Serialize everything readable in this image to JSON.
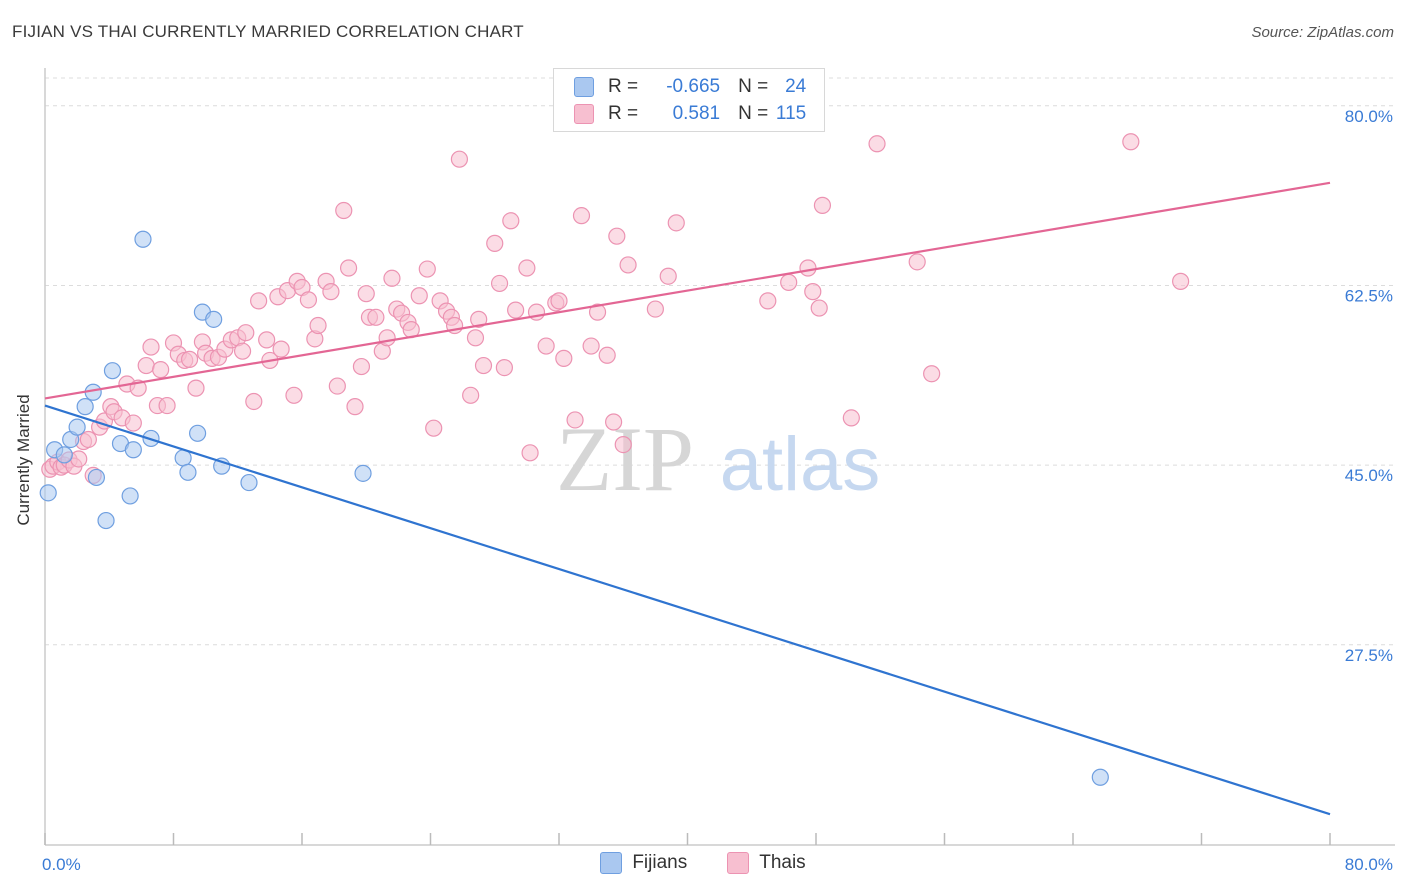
{
  "title": "FIJIAN VS THAI CURRENTLY MARRIED CORRELATION CHART",
  "source": "Source: ZipAtlas.com",
  "watermark": {
    "zip": "ZIP",
    "atlas": "atlas"
  },
  "colors": {
    "fijian_fill": "#aac8f0",
    "fijian_stroke": "#6f9fe0",
    "fijian_line": "#2f74d0",
    "thai_fill": "#f7bfd0",
    "thai_stroke": "#ec93b2",
    "thai_line": "#e36694",
    "axis_text": "#3a7bd5",
    "grid": "#dcdcdc"
  },
  "stats": {
    "fijian": {
      "r_label": "R =",
      "r_value": "-0.665",
      "n_label": "N =",
      "n_value": "24"
    },
    "thai": {
      "r_label": "R =",
      "r_value": "0.581",
      "n_label": "N =",
      "n_value": "115"
    }
  },
  "legend": {
    "fijian": "Fijians",
    "thai": "Thais"
  },
  "chart_data": {
    "type": "scatter",
    "title": "FIJIAN VS THAI CURRENTLY MARRIED CORRELATION CHART",
    "xlabel": "",
    "ylabel": "Currently Married",
    "xlim": [
      0,
      80
    ],
    "ylim": [
      8,
      83
    ],
    "x_tick_labels": [
      "0.0%",
      "80.0%"
    ],
    "y_ticks": [
      27.5,
      45.0,
      62.5,
      80.0
    ],
    "y_tick_labels": [
      "27.5%",
      "45.0%",
      "62.5%",
      "80.0%"
    ],
    "grid": true,
    "series": [
      {
        "name": "Fijians",
        "r": -0.665,
        "n": 24,
        "trend": {
          "x": [
            0,
            80
          ],
          "y": [
            50.8,
            11.0
          ]
        },
        "points": [
          [
            0.2,
            42.3
          ],
          [
            0.6,
            46.5
          ],
          [
            1.2,
            46.0
          ],
          [
            1.6,
            47.5
          ],
          [
            2.0,
            48.7
          ],
          [
            2.5,
            50.7
          ],
          [
            3.0,
            52.1
          ],
          [
            3.2,
            43.8
          ],
          [
            3.8,
            39.6
          ],
          [
            4.2,
            54.2
          ],
          [
            4.7,
            47.1
          ],
          [
            5.3,
            42.0
          ],
          [
            5.5,
            46.5
          ],
          [
            6.1,
            67.0
          ],
          [
            6.6,
            47.6
          ],
          [
            8.6,
            45.7
          ],
          [
            8.9,
            44.3
          ],
          [
            9.5,
            48.1
          ],
          [
            9.8,
            59.9
          ],
          [
            10.5,
            59.2
          ],
          [
            11.0,
            44.9
          ],
          [
            12.7,
            43.3
          ],
          [
            19.8,
            44.2
          ],
          [
            65.7,
            14.6
          ]
        ]
      },
      {
        "name": "Thais",
        "r": 0.581,
        "n": 115,
        "trend": {
          "x": [
            0,
            80
          ],
          "y": [
            51.5,
            72.5
          ]
        },
        "points": [
          [
            0.3,
            44.6
          ],
          [
            0.5,
            44.9
          ],
          [
            0.8,
            45.3
          ],
          [
            1.0,
            44.8
          ],
          [
            1.2,
            45.0
          ],
          [
            1.5,
            45.5
          ],
          [
            1.8,
            44.9
          ],
          [
            2.1,
            45.6
          ],
          [
            2.4,
            47.3
          ],
          [
            2.7,
            47.5
          ],
          [
            3.0,
            44.0
          ],
          [
            3.4,
            48.7
          ],
          [
            3.7,
            49.3
          ],
          [
            4.1,
            50.7
          ],
          [
            4.3,
            50.2
          ],
          [
            4.8,
            49.6
          ],
          [
            5.1,
            52.9
          ],
          [
            5.5,
            49.1
          ],
          [
            5.8,
            52.5
          ],
          [
            6.3,
            54.7
          ],
          [
            6.6,
            56.5
          ],
          [
            7.0,
            50.8
          ],
          [
            7.2,
            54.3
          ],
          [
            7.6,
            50.8
          ],
          [
            8.0,
            56.9
          ],
          [
            8.3,
            55.8
          ],
          [
            8.7,
            55.2
          ],
          [
            9.0,
            55.3
          ],
          [
            9.4,
            52.5
          ],
          [
            9.8,
            57.0
          ],
          [
            10.0,
            55.9
          ],
          [
            10.4,
            55.4
          ],
          [
            10.8,
            55.5
          ],
          [
            11.2,
            56.3
          ],
          [
            11.6,
            57.2
          ],
          [
            12.0,
            57.4
          ],
          [
            12.3,
            56.1
          ],
          [
            12.5,
            57.9
          ],
          [
            13.0,
            51.2
          ],
          [
            13.3,
            61.0
          ],
          [
            13.8,
            57.2
          ],
          [
            14.0,
            55.2
          ],
          [
            14.5,
            61.4
          ],
          [
            14.7,
            56.3
          ],
          [
            15.1,
            62.0
          ],
          [
            15.5,
            51.8
          ],
          [
            15.7,
            62.9
          ],
          [
            16.0,
            62.3
          ],
          [
            16.4,
            61.1
          ],
          [
            16.8,
            57.3
          ],
          [
            17.0,
            58.6
          ],
          [
            17.5,
            62.9
          ],
          [
            17.8,
            61.9
          ],
          [
            18.2,
            52.7
          ],
          [
            18.6,
            69.8
          ],
          [
            18.9,
            64.2
          ],
          [
            19.3,
            50.7
          ],
          [
            19.7,
            54.6
          ],
          [
            20.0,
            61.7
          ],
          [
            20.2,
            59.4
          ],
          [
            20.6,
            59.4
          ],
          [
            21.0,
            56.1
          ],
          [
            21.3,
            57.4
          ],
          [
            21.6,
            63.2
          ],
          [
            21.9,
            60.2
          ],
          [
            22.2,
            59.8
          ],
          [
            22.6,
            58.9
          ],
          [
            22.8,
            58.2
          ],
          [
            23.3,
            61.5
          ],
          [
            23.8,
            64.1
          ],
          [
            24.2,
            48.6
          ],
          [
            24.6,
            61.0
          ],
          [
            25.0,
            60.0
          ],
          [
            25.3,
            59.4
          ],
          [
            25.5,
            58.6
          ],
          [
            25.8,
            74.8
          ],
          [
            26.5,
            51.8
          ],
          [
            26.8,
            57.4
          ],
          [
            27.0,
            59.2
          ],
          [
            27.3,
            54.7
          ],
          [
            28.0,
            66.6
          ],
          [
            28.3,
            62.7
          ],
          [
            28.6,
            54.5
          ],
          [
            29.0,
            68.8
          ],
          [
            29.3,
            60.1
          ],
          [
            30.0,
            64.2
          ],
          [
            30.2,
            46.2
          ],
          [
            30.6,
            59.9
          ],
          [
            31.2,
            56.6
          ],
          [
            31.8,
            60.8
          ],
          [
            32.0,
            61.0
          ],
          [
            32.3,
            55.4
          ],
          [
            33.0,
            49.4
          ],
          [
            33.4,
            69.3
          ],
          [
            34.0,
            56.6
          ],
          [
            34.4,
            59.9
          ],
          [
            35.0,
            55.7
          ],
          [
            35.4,
            49.2
          ],
          [
            35.6,
            67.3
          ],
          [
            36.0,
            47.0
          ],
          [
            36.3,
            64.5
          ],
          [
            38.0,
            60.2
          ],
          [
            38.8,
            63.4
          ],
          [
            39.3,
            68.6
          ],
          [
            45.0,
            61.0
          ],
          [
            46.3,
            62.8
          ],
          [
            47.5,
            64.2
          ],
          [
            47.8,
            61.9
          ],
          [
            48.2,
            60.3
          ],
          [
            48.4,
            70.3
          ],
          [
            50.2,
            49.6
          ],
          [
            51.8,
            76.3
          ],
          [
            54.3,
            64.8
          ],
          [
            55.2,
            53.9
          ],
          [
            67.6,
            76.5
          ],
          [
            70.7,
            62.9
          ]
        ]
      }
    ]
  }
}
